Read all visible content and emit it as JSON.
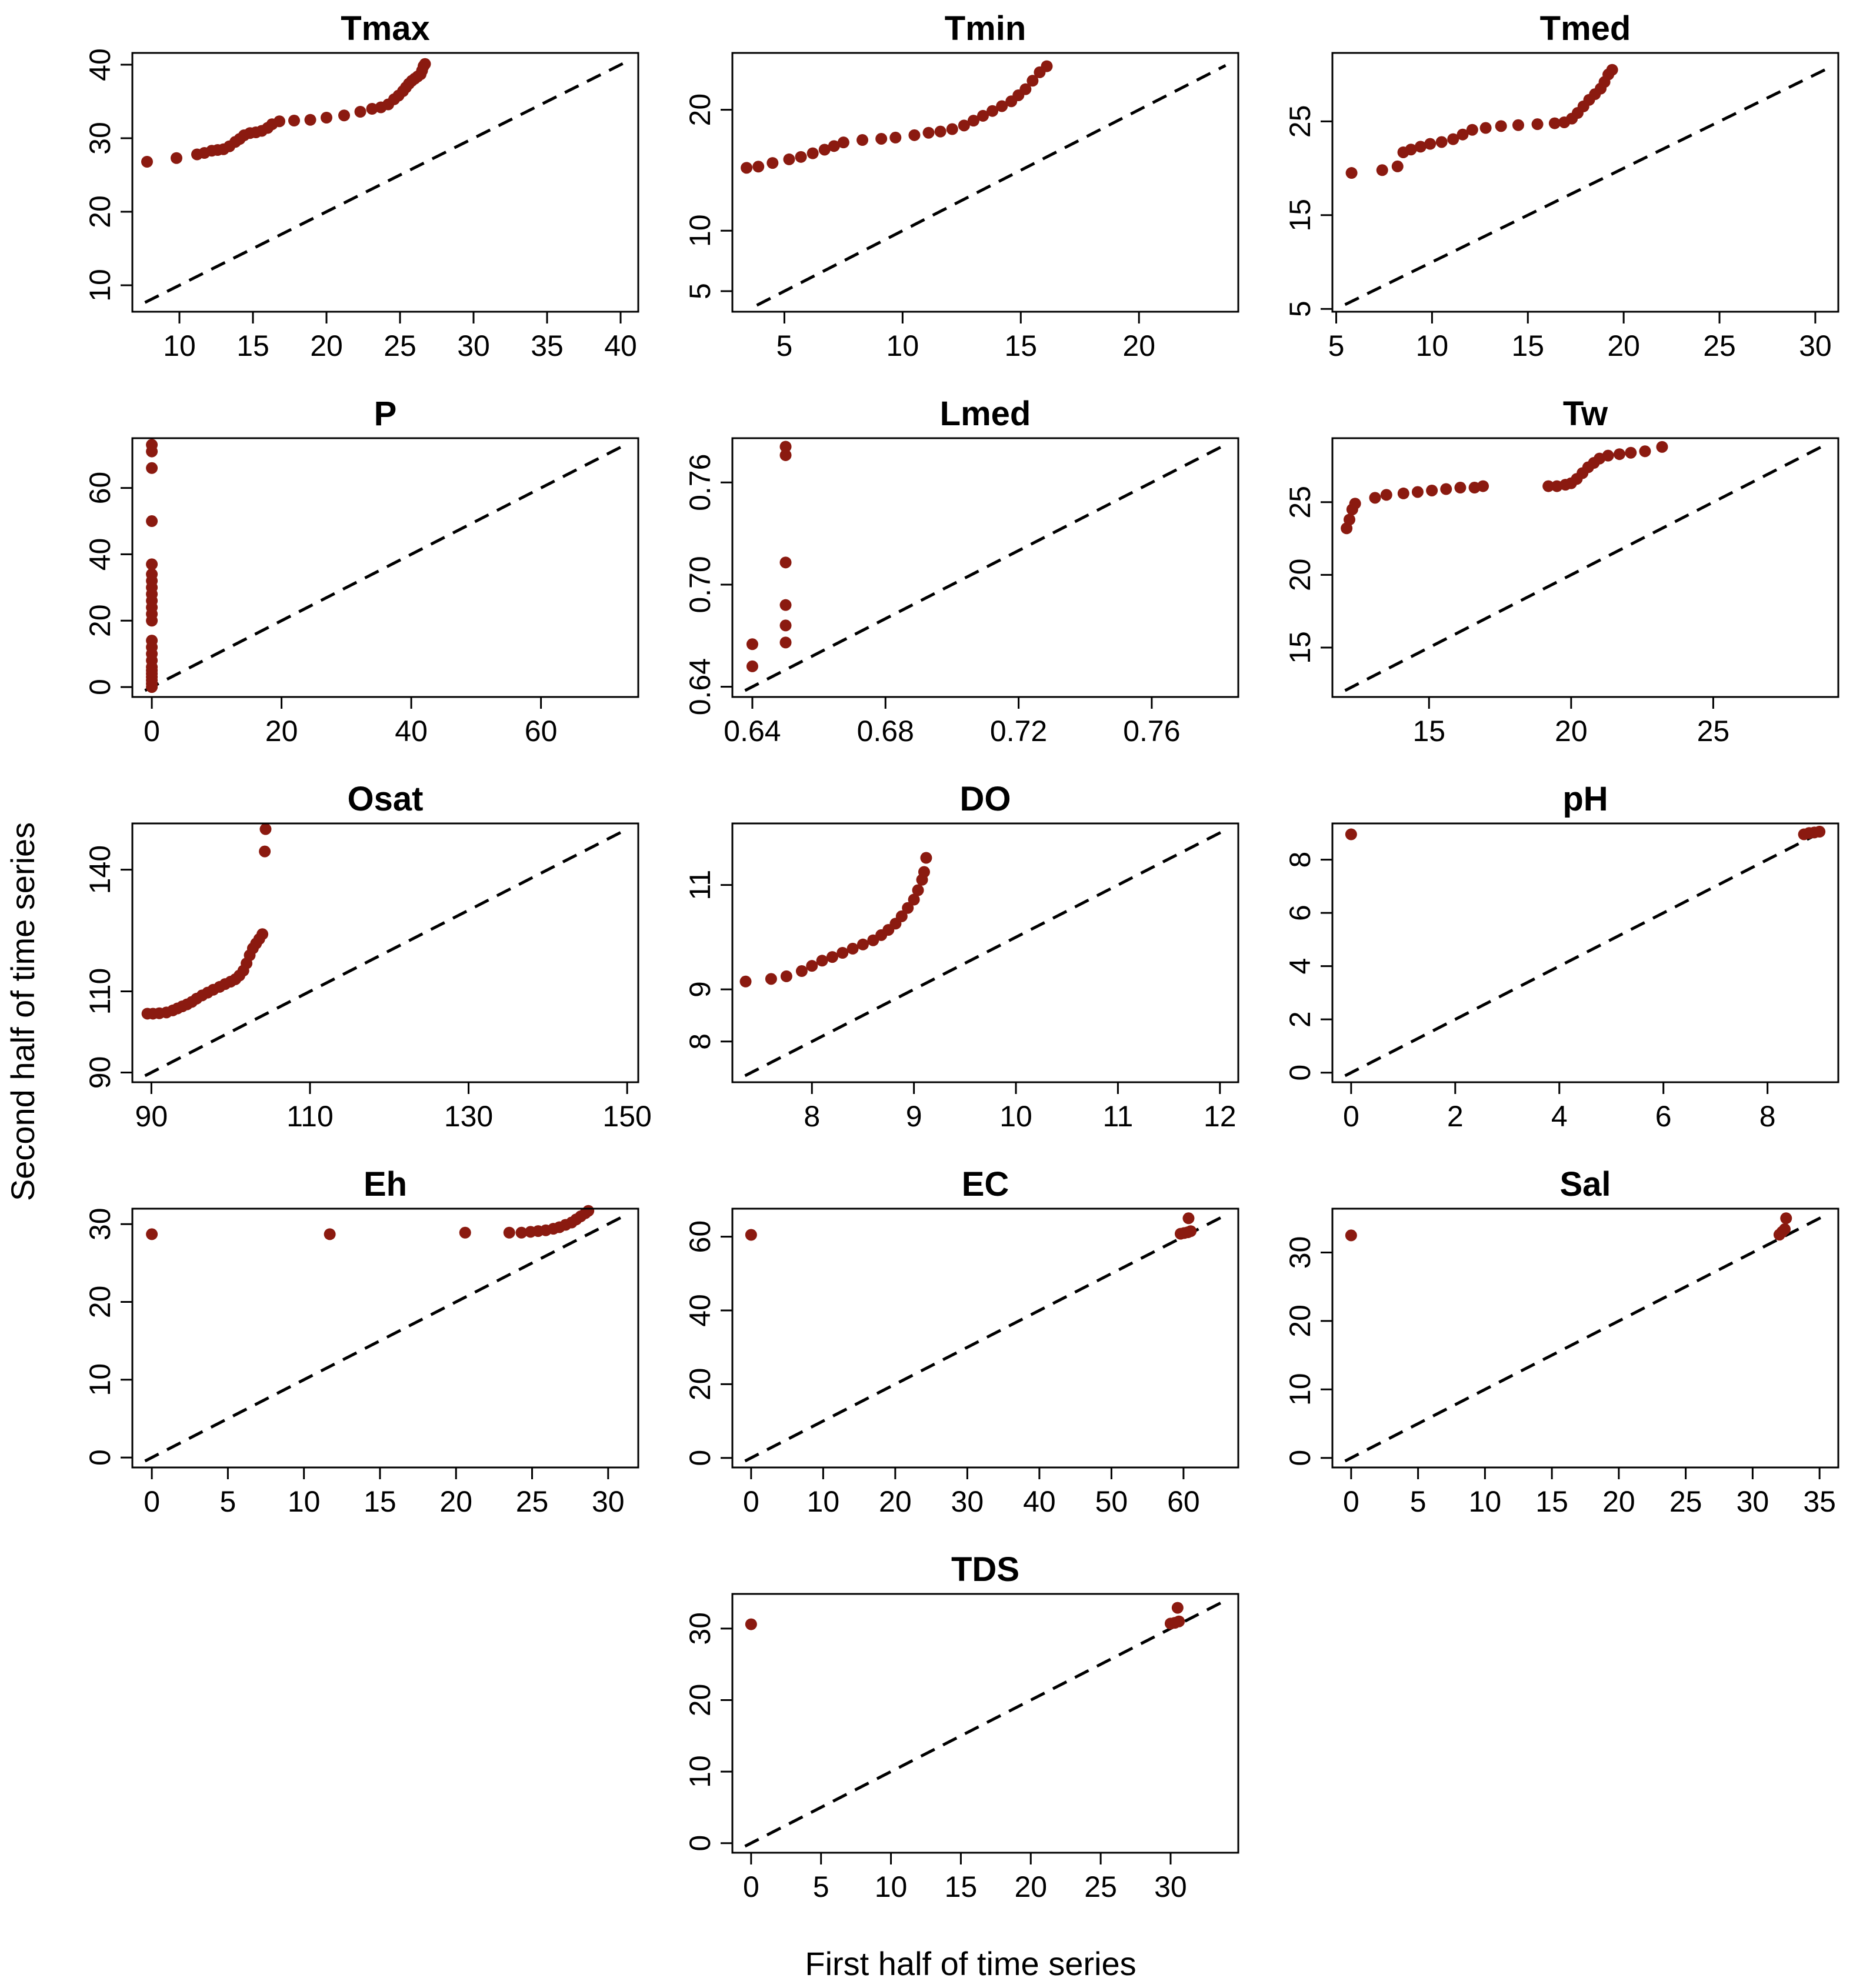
{
  "figure": {
    "xlabel": "First half of time series",
    "ylabel": "Second half of time series",
    "colors": {
      "points": "#8b1a10",
      "reference_line": "#000000",
      "frame": "#000000"
    }
  },
  "chart_data": [
    {
      "type": "scatter",
      "title": "Tmax",
      "xlim": [
        6.8,
        41.2
      ],
      "ylim": [
        6.4,
        41.6
      ],
      "xticks": [
        10,
        15,
        20,
        25,
        30,
        35,
        40
      ],
      "yticks": [
        10,
        20,
        30,
        40
      ],
      "points": [
        [
          7.8,
          26.8
        ],
        [
          9.8,
          27.3
        ],
        [
          11.2,
          27.8
        ],
        [
          11.7,
          28
        ],
        [
          12.2,
          28.3
        ],
        [
          12.6,
          28.4
        ],
        [
          13.0,
          28.5
        ],
        [
          13.4,
          28.9
        ],
        [
          13.8,
          29.5
        ],
        [
          14.1,
          29.9
        ],
        [
          14.4,
          30.4
        ],
        [
          14.8,
          30.7
        ],
        [
          15.2,
          30.8
        ],
        [
          15.6,
          31.0
        ],
        [
          16.0,
          31.4
        ],
        [
          16.3,
          31.9
        ],
        [
          16.8,
          32.3
        ],
        [
          17.8,
          32.4
        ],
        [
          18.9,
          32.5
        ],
        [
          20.0,
          32.8
        ],
        [
          21.2,
          33.1
        ],
        [
          22.3,
          33.6
        ],
        [
          23.1,
          34.0
        ],
        [
          23.7,
          34.2
        ],
        [
          24.2,
          34.6
        ],
        [
          24.6,
          35.3
        ],
        [
          24.9,
          35.8
        ],
        [
          25.2,
          36.4
        ],
        [
          25.4,
          36.9
        ],
        [
          25.6,
          37.4
        ],
        [
          25.8,
          37.8
        ],
        [
          26.0,
          38.1
        ],
        [
          26.2,
          38.4
        ],
        [
          26.4,
          38.7
        ],
        [
          26.5,
          39.2
        ],
        [
          26.6,
          39.8
        ],
        [
          26.7,
          40.1
        ]
      ]
    },
    {
      "type": "scatter",
      "title": "Tmin",
      "xlim": [
        2.8,
        24.2
      ],
      "ylim": [
        3.3,
        24.7
      ],
      "xticks": [
        5,
        10,
        15,
        20
      ],
      "yticks": [
        5,
        10,
        20
      ],
      "points": [
        [
          3.4,
          15.2
        ],
        [
          3.9,
          15.3
        ],
        [
          4.5,
          15.6
        ],
        [
          5.2,
          15.9
        ],
        [
          5.7,
          16.1
        ],
        [
          6.2,
          16.4
        ],
        [
          6.7,
          16.7
        ],
        [
          7.1,
          17.0
        ],
        [
          7.5,
          17.3
        ],
        [
          8.3,
          17.5
        ],
        [
          9.1,
          17.6
        ],
        [
          9.7,
          17.7
        ],
        [
          10.5,
          17.9
        ],
        [
          11.1,
          18.1
        ],
        [
          11.6,
          18.2
        ],
        [
          12.1,
          18.4
        ],
        [
          12.6,
          18.7
        ],
        [
          13.0,
          19.1
        ],
        [
          13.4,
          19.5
        ],
        [
          13.8,
          19.9
        ],
        [
          14.2,
          20.3
        ],
        [
          14.6,
          20.7
        ],
        [
          14.9,
          21.2
        ],
        [
          15.2,
          21.7
        ],
        [
          15.5,
          22.4
        ],
        [
          15.8,
          23.1
        ],
        [
          16.1,
          23.6
        ]
      ]
    },
    {
      "type": "scatter",
      "title": "Tmed",
      "xlim": [
        4.8,
        31.2
      ],
      "ylim": [
        4.7,
        32.3
      ],
      "xticks": [
        5,
        10,
        15,
        20,
        25,
        30
      ],
      "yticks": [
        5,
        15,
        25
      ],
      "points": [
        [
          5.8,
          19.5
        ],
        [
          7.4,
          19.8
        ],
        [
          8.2,
          20.2
        ],
        [
          8.5,
          21.7
        ],
        [
          8.9,
          22.0
        ],
        [
          9.4,
          22.3
        ],
        [
          9.9,
          22.6
        ],
        [
          10.5,
          22.8
        ],
        [
          11.1,
          23.1
        ],
        [
          11.6,
          23.6
        ],
        [
          12.1,
          24.1
        ],
        [
          12.8,
          24.3
        ],
        [
          13.6,
          24.5
        ],
        [
          14.5,
          24.6
        ],
        [
          15.5,
          24.7
        ],
        [
          16.4,
          24.8
        ],
        [
          16.9,
          24.9
        ],
        [
          17.3,
          25.3
        ],
        [
          17.6,
          25.9
        ],
        [
          17.9,
          26.6
        ],
        [
          18.2,
          27.3
        ],
        [
          18.5,
          27.9
        ],
        [
          18.8,
          28.5
        ],
        [
          19.0,
          29.2
        ],
        [
          19.2,
          30.0
        ],
        [
          19.4,
          30.5
        ]
      ]
    },
    {
      "type": "scatter",
      "title": "P",
      "xlim": [
        -3,
        75
      ],
      "ylim": [
        -3,
        75
      ],
      "xticks": [
        0,
        20,
        40,
        60
      ],
      "yticks": [
        0,
        20,
        40,
        60
      ],
      "points": [
        [
          0,
          0
        ],
        [
          0,
          1
        ],
        [
          0,
          2
        ],
        [
          0,
          3
        ],
        [
          0,
          4
        ],
        [
          0,
          5
        ],
        [
          0,
          6
        ],
        [
          0,
          8
        ],
        [
          0,
          10
        ],
        [
          0,
          12
        ],
        [
          0,
          14
        ],
        [
          0,
          20
        ],
        [
          0,
          22
        ],
        [
          0,
          24
        ],
        [
          0,
          26
        ],
        [
          0,
          28
        ],
        [
          0,
          30
        ],
        [
          0,
          32
        ],
        [
          0,
          34
        ],
        [
          0,
          37
        ],
        [
          0,
          50
        ],
        [
          0,
          66
        ],
        [
          0,
          71
        ],
        [
          0,
          73
        ]
      ]
    },
    {
      "type": "scatter",
      "title": "Lmed",
      "xlim": [
        0.634,
        0.786
      ],
      "ylim": [
        0.634,
        0.786
      ],
      "xticks": [
        0.64,
        0.68,
        0.72,
        0.76
      ],
      "yticks": [
        0.64,
        0.7,
        0.76
      ],
      "points": [
        [
          0.64,
          0.652
        ],
        [
          0.64,
          0.665
        ],
        [
          0.65,
          0.666
        ],
        [
          0.65,
          0.676
        ],
        [
          0.65,
          0.688
        ],
        [
          0.65,
          0.713
        ],
        [
          0.65,
          0.776
        ],
        [
          0.65,
          0.781
        ]
      ]
    },
    {
      "type": "scatter",
      "title": "Tw",
      "xlim": [
        11.6,
        29.4
      ],
      "ylim": [
        11.6,
        29.4
      ],
      "xticks": [
        15,
        20,
        25
      ],
      "yticks": [
        15,
        20,
        25
      ],
      "points": [
        [
          12.1,
          23.2
        ],
        [
          12.2,
          23.8
        ],
        [
          12.3,
          24.5
        ],
        [
          12.4,
          24.9
        ],
        [
          13.1,
          25.3
        ],
        [
          13.5,
          25.5
        ],
        [
          14.1,
          25.6
        ],
        [
          14.6,
          25.7
        ],
        [
          15.1,
          25.8
        ],
        [
          15.6,
          25.9
        ],
        [
          16.1,
          26.0
        ],
        [
          16.6,
          26.0
        ],
        [
          16.9,
          26.1
        ],
        [
          19.2,
          26.1
        ],
        [
          19.5,
          26.1
        ],
        [
          19.8,
          26.2
        ],
        [
          20.0,
          26.3
        ],
        [
          20.2,
          26.6
        ],
        [
          20.4,
          27.0
        ],
        [
          20.6,
          27.4
        ],
        [
          20.8,
          27.7
        ],
        [
          21.0,
          28.0
        ],
        [
          21.3,
          28.2
        ],
        [
          21.7,
          28.3
        ],
        [
          22.1,
          28.4
        ],
        [
          22.6,
          28.5
        ],
        [
          23.2,
          28.8
        ]
      ]
    },
    {
      "type": "scatter",
      "title": "Osat",
      "xlim": [
        87.6,
        151.4
      ],
      "ylim": [
        87.6,
        151.4
      ],
      "xticks": [
        90,
        110,
        130,
        150
      ],
      "yticks": [
        90,
        110,
        140
      ],
      "points": [
        [
          89.5,
          104.5
        ],
        [
          90.2,
          104.5
        ],
        [
          91.0,
          104.6
        ],
        [
          91.9,
          104.8
        ],
        [
          92.7,
          105.3
        ],
        [
          93.3,
          105.8
        ],
        [
          93.9,
          106.3
        ],
        [
          94.5,
          106.8
        ],
        [
          95.1,
          107.4
        ],
        [
          95.7,
          108.2
        ],
        [
          96.4,
          109.0
        ],
        [
          97.1,
          109.7
        ],
        [
          97.8,
          110.4
        ],
        [
          98.6,
          111.1
        ],
        [
          99.3,
          111.8
        ],
        [
          100.0,
          112.4
        ],
        [
          100.6,
          113.0
        ],
        [
          101.1,
          113.9
        ],
        [
          101.6,
          115.1
        ],
        [
          102.0,
          116.9
        ],
        [
          102.4,
          118.9
        ],
        [
          102.8,
          120.6
        ],
        [
          103.2,
          121.8
        ],
        [
          103.6,
          122.9
        ],
        [
          104.0,
          124.1
        ],
        [
          104.3,
          144.5
        ],
        [
          104.4,
          150.0
        ]
      ]
    },
    {
      "type": "scatter",
      "title": "DO",
      "xlim": [
        7.22,
        12.18
      ],
      "ylim": [
        7.22,
        12.18
      ],
      "xticks": [
        8,
        9,
        10,
        11,
        12
      ],
      "yticks": [
        8,
        9,
        11
      ],
      "points": [
        [
          7.35,
          9.15
        ],
        [
          7.6,
          9.2
        ],
        [
          7.75,
          9.25
        ],
        [
          7.9,
          9.35
        ],
        [
          8.0,
          9.45
        ],
        [
          8.1,
          9.55
        ],
        [
          8.2,
          9.62
        ],
        [
          8.3,
          9.7
        ],
        [
          8.4,
          9.78
        ],
        [
          8.5,
          9.86
        ],
        [
          8.6,
          9.94
        ],
        [
          8.68,
          10.04
        ],
        [
          8.75,
          10.14
        ],
        [
          8.82,
          10.26
        ],
        [
          8.88,
          10.4
        ],
        [
          8.94,
          10.56
        ],
        [
          9.0,
          10.72
        ],
        [
          9.04,
          10.9
        ],
        [
          9.08,
          11.1
        ],
        [
          9.1,
          11.25
        ],
        [
          9.12,
          11.52
        ]
      ]
    },
    {
      "type": "scatter",
      "title": "pH",
      "xlim": [
        -0.36,
        9.36
      ],
      "ylim": [
        -0.36,
        9.36
      ],
      "xticks": [
        0,
        2,
        4,
        6,
        8
      ],
      "yticks": [
        0,
        2,
        4,
        6,
        8
      ],
      "points": [
        [
          0,
          8.95
        ],
        [
          8.7,
          8.95
        ],
        [
          8.8,
          9.0
        ],
        [
          8.9,
          9.02
        ],
        [
          9.0,
          9.05
        ]
      ]
    },
    {
      "type": "scatter",
      "title": "Eh",
      "xlim": [
        -1.28,
        31.98
      ],
      "ylim": [
        -1.28,
        31.98
      ],
      "xticks": [
        0,
        5,
        10,
        15,
        20,
        25,
        30
      ],
      "yticks": [
        0,
        10,
        20,
        30
      ],
      "points": [
        [
          0,
          28.7
        ],
        [
          11.7,
          28.7
        ],
        [
          20.6,
          28.9
        ],
        [
          23.5,
          28.9
        ],
        [
          24.3,
          28.9
        ],
        [
          24.9,
          29.0
        ],
        [
          25.4,
          29.1
        ],
        [
          25.9,
          29.2
        ],
        [
          26.4,
          29.4
        ],
        [
          26.8,
          29.6
        ],
        [
          27.2,
          29.9
        ],
        [
          27.6,
          30.2
        ],
        [
          27.9,
          30.6
        ],
        [
          28.2,
          31.0
        ],
        [
          28.5,
          31.4
        ],
        [
          28.7,
          31.7
        ]
      ]
    },
    {
      "type": "scatter",
      "title": "EC",
      "xlim": [
        -2.6,
        67.6
      ],
      "ylim": [
        -2.6,
        67.6
      ],
      "xticks": [
        0,
        10,
        20,
        30,
        40,
        50,
        60
      ],
      "yticks": [
        0,
        20,
        40,
        60
      ],
      "points": [
        [
          0,
          60.5
        ],
        [
          59.6,
          60.8
        ],
        [
          60.1,
          61.0
        ],
        [
          60.6,
          61.2
        ],
        [
          61.0,
          61.5
        ],
        [
          60.7,
          65.0
        ]
      ]
    },
    {
      "type": "scatter",
      "title": "Sal",
      "xlim": [
        -1.4,
        36.4
      ],
      "ylim": [
        -1.4,
        36.4
      ],
      "xticks": [
        0,
        5,
        10,
        15,
        20,
        25,
        30,
        35
      ],
      "yticks": [
        0,
        10,
        20,
        30
      ],
      "points": [
        [
          0,
          32.5
        ],
        [
          32.0,
          32.6
        ],
        [
          32.2,
          33.0
        ],
        [
          32.4,
          33.4
        ],
        [
          32.5,
          35.0
        ]
      ]
    },
    {
      "type": "scatter",
      "title": "TDS",
      "xlim": [
        -1.34,
        34.84
      ],
      "ylim": [
        -1.34,
        34.84
      ],
      "xticks": [
        0,
        5,
        10,
        15,
        20,
        25,
        30
      ],
      "yticks": [
        0,
        10,
        20,
        30
      ],
      "points": [
        [
          0,
          30.6
        ],
        [
          30.0,
          30.7
        ],
        [
          30.3,
          30.8
        ],
        [
          30.6,
          31.0
        ],
        [
          30.5,
          32.9
        ]
      ]
    }
  ]
}
